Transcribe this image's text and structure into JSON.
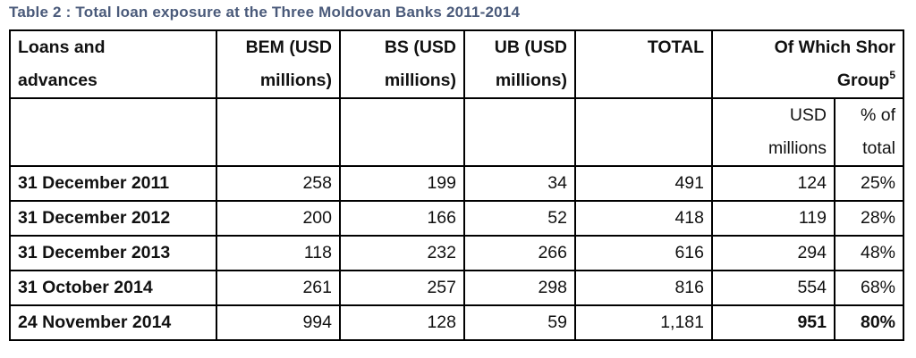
{
  "caption": "Table 2 : Total loan exposure at the Three Moldovan Banks 2011-2014",
  "header": {
    "loans_line1": "Loans and",
    "loans_line2": "advances",
    "bem_line1": "BEM (USD",
    "bem_line2": "millions)",
    "bs_line1": "BS (USD",
    "bs_line2": "millions)",
    "ub_line1": "UB (USD",
    "ub_line2": "millions)",
    "total": "TOTAL",
    "shor_line1": "Of Which Shor",
    "shor_line2": "Group",
    "shor_footnote": "5"
  },
  "subheader": {
    "usd_line1": "USD",
    "usd_line2": "millions",
    "pct_line1": "% of",
    "pct_line2": "total"
  },
  "rows": [
    {
      "label": "31 December 2011",
      "bem": "258",
      "bs": "199",
      "ub": "34",
      "total": "491",
      "usd": "124",
      "pct": "25%"
    },
    {
      "label": "31 December 2012",
      "bem": "200",
      "bs": "166",
      "ub": "52",
      "total": "418",
      "usd": "119",
      "pct": "28%"
    },
    {
      "label": "31 December 2013",
      "bem": "118",
      "bs": "232",
      "ub": "266",
      "total": "616",
      "usd": "294",
      "pct": "48%"
    },
    {
      "label": "31 October 2014",
      "bem": "261",
      "bs": "257",
      "ub": "298",
      "total": "816",
      "usd": "554",
      "pct": "68%"
    },
    {
      "label": "24 November 2014",
      "bem": "994",
      "bs": "128",
      "ub": "59",
      "total": "1,181",
      "usd": "951",
      "pct": "80%"
    }
  ]
}
